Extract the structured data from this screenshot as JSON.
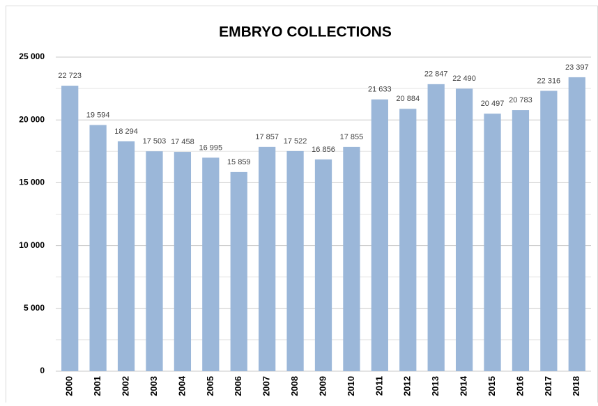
{
  "chart_data": {
    "type": "bar",
    "title": "EMBRYO COLLECTIONS",
    "categories": [
      "2000",
      "2001",
      "2002",
      "2003",
      "2004",
      "2005",
      "2006",
      "2007",
      "2008",
      "2009",
      "2010",
      "2011",
      "2012",
      "2013",
      "2014",
      "2015",
      "2016",
      "2017",
      "2018"
    ],
    "values": [
      22723,
      19594,
      18294,
      17503,
      17458,
      16995,
      15859,
      17857,
      17522,
      16856,
      17855,
      21633,
      20884,
      22847,
      22490,
      20497,
      20783,
      22316,
      23397
    ],
    "value_labels": [
      "22 723",
      "19 594",
      "18 294",
      "17 503",
      "17 458",
      "16 995",
      "15 859",
      "17 857",
      "17 522",
      "16 856",
      "17 855",
      "21 633",
      "20 884",
      "22 847",
      "22 490",
      "20 497",
      "20 783",
      "22 316",
      "23 397"
    ],
    "color": "#9bb7d9",
    "ylim": [
      0,
      25000
    ],
    "yticks": [
      0,
      {
        "value": 5000,
        "label": "5 000"
      },
      {
        "value": 10000,
        "label": "10 000"
      },
      {
        "value": 15000,
        "label": "15 000"
      },
      {
        "value": 20000,
        "label": "20 000"
      },
      {
        "value": 25000,
        "label": "25 000"
      }
    ],
    "minor_yticks": [
      2500,
      7500,
      12500,
      17500,
      22500
    ],
    "grid": true
  }
}
